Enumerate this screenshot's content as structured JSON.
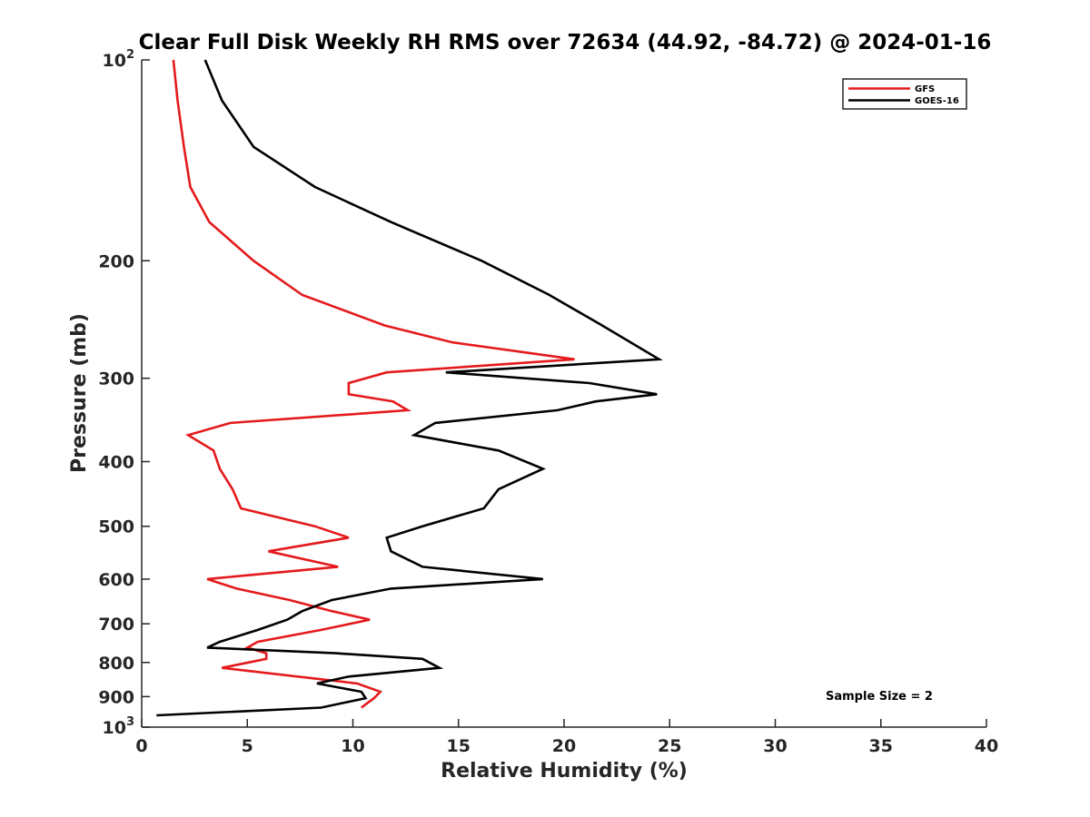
{
  "chart_data": {
    "type": "line",
    "title": "Clear Full Disk Weekly RH RMS over 72634 (44.92, -84.72) @ 2024-01-16",
    "xlabel": "Relative Humidity (%)",
    "ylabel": "Pressure (mb)",
    "xlim": [
      0,
      40
    ],
    "ylim": [
      100,
      1000
    ],
    "yscale": "log",
    "y_reversed": true,
    "grid": false,
    "legend_position": "top-right",
    "x_ticks": [
      0,
      5,
      10,
      15,
      20,
      25,
      30,
      35,
      40
    ],
    "x_tick_labels": [
      "0",
      "5",
      "10",
      "15",
      "20",
      "25",
      "30",
      "35",
      "40"
    ],
    "y_ticks": [
      100,
      200,
      300,
      400,
      500,
      600,
      700,
      800,
      900,
      1000
    ],
    "y_tick_labels": [
      {
        "base": "10",
        "sup": "2"
      },
      {
        "base": "200",
        "sup": ""
      },
      {
        "base": "300",
        "sup": ""
      },
      {
        "base": "400",
        "sup": ""
      },
      {
        "base": "500",
        "sup": ""
      },
      {
        "base": "600",
        "sup": ""
      },
      {
        "base": "700",
        "sup": ""
      },
      {
        "base": "800",
        "sup": ""
      },
      {
        "base": "900",
        "sup": ""
      },
      {
        "base": "10",
        "sup": "3"
      }
    ],
    "series": [
      {
        "name": "GFS",
        "color": "#e41a1c",
        "x": [
          1.5,
          1.7,
          2.0,
          2.3,
          3.2,
          5.3,
          7.6,
          11.5,
          14.7,
          20.5,
          11.6,
          9.8,
          9.8,
          11.9,
          12.6,
          4.2,
          2.2,
          3.4,
          3.7,
          4.3,
          4.7,
          8.2,
          9.8,
          6.0,
          9.3,
          3.1,
          4.5,
          7.0,
          9.0,
          10.8,
          8.5,
          5.5,
          5.0,
          5.9,
          5.9,
          3.8,
          10.2,
          11.3,
          11.0,
          10.4
        ],
        "y": [
          100,
          115,
          135,
          155,
          175,
          200,
          225,
          250,
          265,
          281,
          294,
          305,
          317,
          325,
          335,
          350,
          365,
          385,
          410,
          440,
          470,
          500,
          520,
          545,
          575,
          600,
          620,
          645,
          670,
          690,
          715,
          745,
          760,
          775,
          790,
          815,
          860,
          885,
          905,
          935
        ]
      },
      {
        "name": "GOES-16",
        "color": "#000000",
        "x": [
          3.0,
          3.8,
          5.3,
          8.2,
          11.8,
          16.1,
          19.3,
          21.8,
          24.5,
          14.4,
          21.2,
          24.4,
          21.5,
          19.7,
          13.9,
          12.9,
          16.9,
          19.0,
          16.9,
          16.2,
          13.3,
          11.6,
          11.8,
          13.3,
          19.0,
          11.8,
          9.0,
          7.6,
          6.9,
          5.5,
          3.7,
          3.1,
          9.2,
          13.3,
          14.1,
          9.8,
          8.3,
          10.4,
          10.6,
          8.5,
          0.7
        ],
        "y": [
          100,
          115,
          135,
          155,
          175,
          200,
          225,
          250,
          281,
          294,
          305,
          317,
          325,
          335,
          350,
          365,
          385,
          410,
          440,
          470,
          500,
          520,
          545,
          575,
          600,
          620,
          645,
          670,
          690,
          715,
          745,
          760,
          775,
          790,
          815,
          840,
          860,
          885,
          905,
          935,
          960
        ]
      }
    ],
    "annotations": [
      "Sample Size = 2"
    ]
  }
}
